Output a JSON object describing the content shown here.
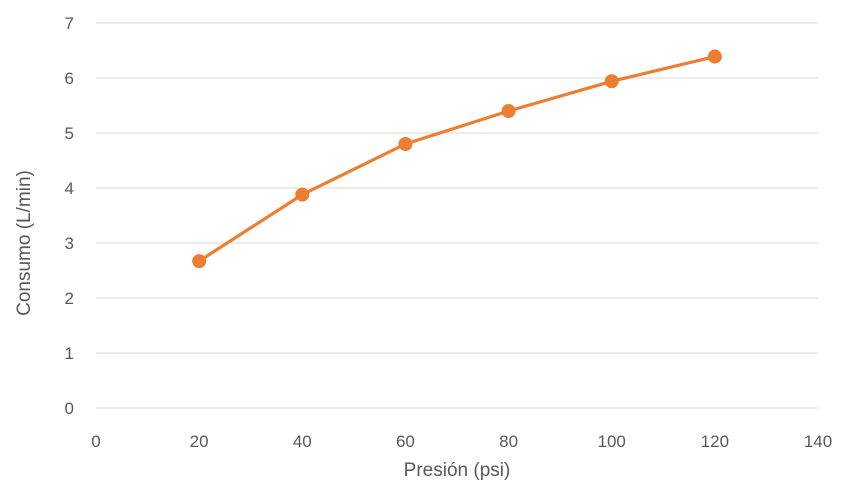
{
  "chart_data": {
    "type": "line",
    "title": "",
    "xlabel": "Presión (psi)",
    "ylabel": "Consumo (L/min)",
    "xlim": [
      0,
      140
    ],
    "ylim": [
      0,
      7
    ],
    "x_ticks": [
      0,
      20,
      40,
      60,
      80,
      100,
      120,
      140
    ],
    "y_ticks": [
      0,
      1,
      2,
      3,
      4,
      5,
      6,
      7
    ],
    "grid": {
      "horizontal": true,
      "vertical": false
    },
    "legend": "none",
    "series": [
      {
        "color": "#ED7D31",
        "marker": "circle",
        "x": [
          20,
          40,
          60,
          80,
          100,
          120
        ],
        "y": [
          2.67,
          3.88,
          4.8,
          5.4,
          5.94,
          6.39
        ]
      }
    ]
  },
  "colors": {
    "line": "#ED7D31",
    "grid": "#D9D9D9",
    "text": "#595959"
  }
}
